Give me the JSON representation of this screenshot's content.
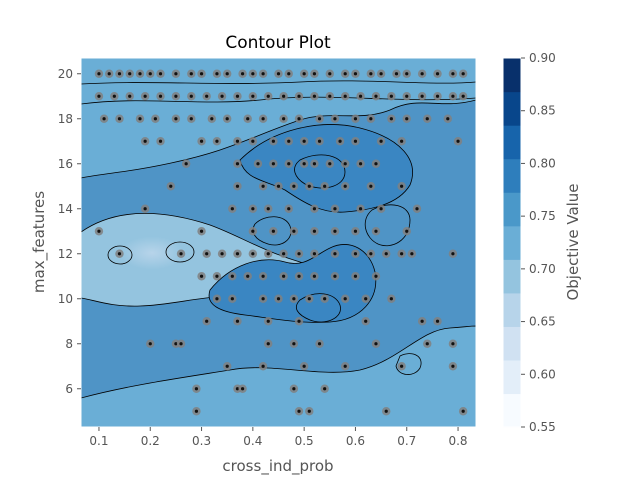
{
  "chart_data": {
    "type": "contour",
    "title": "Contour Plot",
    "xlabel": "cross_ind_prob",
    "ylabel": "max_features",
    "colorbar_label": "Objective Value",
    "xlim": [
      0.065,
      0.835
    ],
    "ylim": [
      4.3,
      20.7
    ],
    "xticks": [
      "0.1",
      "0.2",
      "0.3",
      "0.4",
      "0.5",
      "0.6",
      "0.7",
      "0.8"
    ],
    "yticks": [
      "6",
      "8",
      "10",
      "12",
      "14",
      "16",
      "18",
      "20"
    ],
    "colorbar_range": [
      0.55,
      0.9
    ],
    "colorbar_ticks": [
      "0.55",
      "0.60",
      "0.65",
      "0.70",
      "0.75",
      "0.80",
      "0.85",
      "0.90"
    ],
    "colorbar_levels": [
      "#f7fbff",
      "#e3eef9",
      "#d0e1f2",
      "#b7d4ea",
      "#94c4df",
      "#6aaed6",
      "#4a98c9",
      "#2e7ebc",
      "#1764ab",
      "#08468b",
      "#08306b"
    ],
    "background_color": "#4f94c6",
    "regions": [
      {
        "name": "top-band",
        "color": "#6aaed6"
      },
      {
        "name": "left-lobe",
        "color": "#94c4df"
      },
      {
        "name": "bottom-band",
        "color": "#6aaed6"
      },
      {
        "name": "center-dark",
        "color": "#3a86c2"
      },
      {
        "name": "right-dark",
        "color": "#3a86c2"
      }
    ],
    "points": [
      [
        0.1,
        20
      ],
      [
        0.12,
        20
      ],
      [
        0.14,
        20
      ],
      [
        0.16,
        20
      ],
      [
        0.18,
        20
      ],
      [
        0.2,
        20
      ],
      [
        0.22,
        20
      ],
      [
        0.25,
        20
      ],
      [
        0.28,
        20
      ],
      [
        0.3,
        20
      ],
      [
        0.33,
        20
      ],
      [
        0.35,
        20
      ],
      [
        0.38,
        20
      ],
      [
        0.4,
        20
      ],
      [
        0.42,
        20
      ],
      [
        0.45,
        20
      ],
      [
        0.47,
        20
      ],
      [
        0.5,
        20
      ],
      [
        0.52,
        20
      ],
      [
        0.55,
        20
      ],
      [
        0.58,
        20
      ],
      [
        0.6,
        20
      ],
      [
        0.63,
        20
      ],
      [
        0.65,
        20
      ],
      [
        0.68,
        20
      ],
      [
        0.7,
        20
      ],
      [
        0.73,
        20
      ],
      [
        0.76,
        20
      ],
      [
        0.79,
        20
      ],
      [
        0.81,
        20
      ],
      [
        0.1,
        19
      ],
      [
        0.13,
        19
      ],
      [
        0.16,
        19
      ],
      [
        0.19,
        19
      ],
      [
        0.22,
        19
      ],
      [
        0.25,
        19
      ],
      [
        0.28,
        19
      ],
      [
        0.31,
        19
      ],
      [
        0.34,
        19
      ],
      [
        0.37,
        19
      ],
      [
        0.4,
        19
      ],
      [
        0.43,
        19
      ],
      [
        0.46,
        19
      ],
      [
        0.49,
        19
      ],
      [
        0.52,
        19
      ],
      [
        0.55,
        19
      ],
      [
        0.58,
        19
      ],
      [
        0.61,
        19
      ],
      [
        0.64,
        19
      ],
      [
        0.67,
        19
      ],
      [
        0.7,
        19
      ],
      [
        0.73,
        19
      ],
      [
        0.76,
        19
      ],
      [
        0.79,
        19
      ],
      [
        0.81,
        19
      ],
      [
        0.11,
        18
      ],
      [
        0.14,
        18
      ],
      [
        0.18,
        18
      ],
      [
        0.21,
        18
      ],
      [
        0.25,
        18
      ],
      [
        0.28,
        18
      ],
      [
        0.32,
        18
      ],
      [
        0.35,
        18
      ],
      [
        0.39,
        18
      ],
      [
        0.42,
        18
      ],
      [
        0.46,
        18
      ],
      [
        0.49,
        18
      ],
      [
        0.53,
        18
      ],
      [
        0.56,
        18
      ],
      [
        0.6,
        18
      ],
      [
        0.63,
        18
      ],
      [
        0.67,
        18
      ],
      [
        0.7,
        18
      ],
      [
        0.74,
        18
      ],
      [
        0.78,
        18
      ],
      [
        0.19,
        17
      ],
      [
        0.22,
        17
      ],
      [
        0.3,
        17
      ],
      [
        0.33,
        17
      ],
      [
        0.37,
        17
      ],
      [
        0.4,
        17
      ],
      [
        0.44,
        17
      ],
      [
        0.47,
        17
      ],
      [
        0.5,
        17
      ],
      [
        0.53,
        17
      ],
      [
        0.57,
        17
      ],
      [
        0.6,
        17
      ],
      [
        0.65,
        17
      ],
      [
        0.69,
        17
      ],
      [
        0.8,
        17
      ],
      [
        0.27,
        16
      ],
      [
        0.37,
        16
      ],
      [
        0.41,
        16
      ],
      [
        0.44,
        16
      ],
      [
        0.47,
        16
      ],
      [
        0.5,
        16
      ],
      [
        0.52,
        16
      ],
      [
        0.55,
        16
      ],
      [
        0.58,
        16
      ],
      [
        0.61,
        16
      ],
      [
        0.64,
        16
      ],
      [
        0.24,
        15
      ],
      [
        0.37,
        15
      ],
      [
        0.42,
        15
      ],
      [
        0.45,
        15
      ],
      [
        0.48,
        15
      ],
      [
        0.51,
        15
      ],
      [
        0.54,
        15
      ],
      [
        0.58,
        15
      ],
      [
        0.63,
        15
      ],
      [
        0.69,
        15
      ],
      [
        0.19,
        14
      ],
      [
        0.36,
        14
      ],
      [
        0.4,
        14
      ],
      [
        0.43,
        14
      ],
      [
        0.47,
        14
      ],
      [
        0.52,
        14
      ],
      [
        0.56,
        14
      ],
      [
        0.61,
        14
      ],
      [
        0.65,
        14
      ],
      [
        0.72,
        14
      ],
      [
        0.1,
        13
      ],
      [
        0.3,
        13
      ],
      [
        0.4,
        13
      ],
      [
        0.44,
        13
      ],
      [
        0.48,
        13
      ],
      [
        0.52,
        13
      ],
      [
        0.56,
        13
      ],
      [
        0.6,
        13
      ],
      [
        0.64,
        13
      ],
      [
        0.7,
        13
      ],
      [
        0.14,
        12
      ],
      [
        0.26,
        12
      ],
      [
        0.31,
        12
      ],
      [
        0.34,
        12
      ],
      [
        0.37,
        12
      ],
      [
        0.4,
        12
      ],
      [
        0.43,
        12
      ],
      [
        0.46,
        12
      ],
      [
        0.49,
        12
      ],
      [
        0.52,
        12
      ],
      [
        0.56,
        12
      ],
      [
        0.6,
        12
      ],
      [
        0.63,
        12
      ],
      [
        0.66,
        12
      ],
      [
        0.69,
        12
      ],
      [
        0.71,
        12
      ],
      [
        0.79,
        12
      ],
      [
        0.3,
        11
      ],
      [
        0.33,
        11
      ],
      [
        0.36,
        11
      ],
      [
        0.39,
        11
      ],
      [
        0.42,
        11
      ],
      [
        0.46,
        11
      ],
      [
        0.49,
        11
      ],
      [
        0.52,
        11
      ],
      [
        0.56,
        11
      ],
      [
        0.6,
        11
      ],
      [
        0.64,
        11
      ],
      [
        0.33,
        10
      ],
      [
        0.36,
        10
      ],
      [
        0.42,
        10
      ],
      [
        0.45,
        10
      ],
      [
        0.48,
        10
      ],
      [
        0.51,
        10
      ],
      [
        0.54,
        10
      ],
      [
        0.58,
        10
      ],
      [
        0.62,
        10
      ],
      [
        0.67,
        10
      ],
      [
        0.31,
        9
      ],
      [
        0.37,
        9
      ],
      [
        0.43,
        9
      ],
      [
        0.49,
        9
      ],
      [
        0.62,
        9
      ],
      [
        0.73,
        9
      ],
      [
        0.76,
        9
      ],
      [
        0.2,
        8
      ],
      [
        0.25,
        8
      ],
      [
        0.26,
        8
      ],
      [
        0.43,
        8
      ],
      [
        0.48,
        8
      ],
      [
        0.53,
        8
      ],
      [
        0.64,
        8
      ],
      [
        0.74,
        8
      ],
      [
        0.79,
        8
      ],
      [
        0.35,
        7
      ],
      [
        0.42,
        7
      ],
      [
        0.5,
        7
      ],
      [
        0.58,
        7
      ],
      [
        0.69,
        7
      ],
      [
        0.79,
        7
      ],
      [
        0.29,
        6
      ],
      [
        0.37,
        6
      ],
      [
        0.38,
        6
      ],
      [
        0.48,
        6
      ],
      [
        0.54,
        6
      ],
      [
        0.29,
        5
      ],
      [
        0.49,
        5
      ],
      [
        0.51,
        5
      ],
      [
        0.66,
        5
      ],
      [
        0.81,
        5
      ]
    ]
  }
}
